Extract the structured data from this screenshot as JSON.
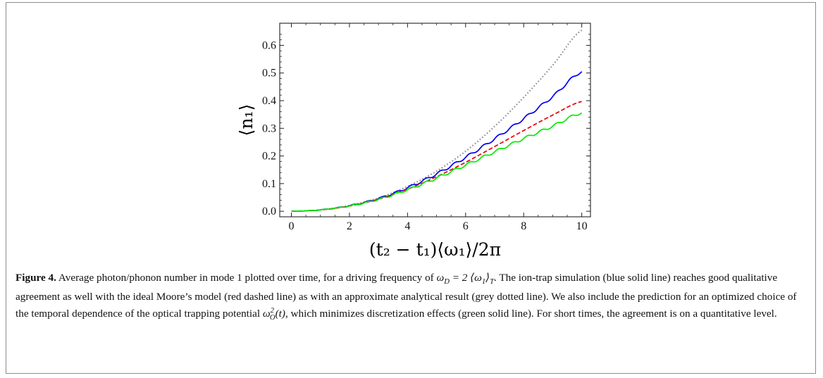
{
  "chart_data": {
    "type": "line",
    "xlabel": "(t₂ − t₁)⟨ω₁⟩/2π",
    "ylabel": "⟨n₁⟩",
    "xlim": [
      -0.4,
      10.3
    ],
    "ylim": [
      -0.02,
      0.68
    ],
    "x_ticks": [
      0,
      2,
      4,
      6,
      8,
      10
    ],
    "x_tick_labels": [
      "0",
      "2",
      "4",
      "6",
      "8",
      "10"
    ],
    "y_ticks": [
      0.0,
      0.1,
      0.2,
      0.3,
      0.4,
      0.5,
      0.6
    ],
    "y_tick_labels": [
      "0.0",
      "0.1",
      "0.2",
      "0.3",
      "0.4",
      "0.5",
      "0.6"
    ],
    "grid": false,
    "legend": "none",
    "series": [
      {
        "style": "dotted",
        "color": "#808080",
        "x": [
          0,
          1,
          2,
          3,
          4,
          5,
          6,
          7,
          8,
          9,
          10
        ],
        "y": [
          0.0,
          0.005,
          0.021,
          0.048,
          0.09,
          0.145,
          0.217,
          0.307,
          0.412,
          0.528,
          0.655
        ]
      },
      {
        "style": "solid",
        "color": "#0000ee",
        "oscillating": true,
        "x": [
          0,
          1,
          2,
          3,
          4,
          5,
          6,
          7,
          8,
          9,
          10
        ],
        "y": [
          0.0,
          0.005,
          0.02,
          0.046,
          0.085,
          0.135,
          0.195,
          0.262,
          0.335,
          0.415,
          0.505
        ]
      },
      {
        "style": "dashed",
        "color": "#e8000b",
        "x": [
          0,
          1,
          2,
          3,
          4,
          5,
          6,
          7,
          8,
          9,
          10
        ],
        "y": [
          0.0,
          0.005,
          0.019,
          0.044,
          0.08,
          0.125,
          0.177,
          0.234,
          0.292,
          0.348,
          0.397
        ]
      },
      {
        "style": "solid",
        "color": "#00ee00",
        "oscillating": true,
        "x": [
          0,
          1,
          2,
          3,
          4,
          5,
          6,
          7,
          8,
          9,
          10
        ],
        "y": [
          0.0,
          0.005,
          0.019,
          0.043,
          0.078,
          0.12,
          0.167,
          0.215,
          0.263,
          0.308,
          0.356
        ]
      }
    ]
  },
  "caption": {
    "label": "Figure 4.",
    "part1": "Average photon/phonon number in mode 1 plotted over time, for a driving frequency of",
    "math1_lhs": "ω",
    "math1_lhs_sub": "D",
    "math1_rhs": "= 2 ⟨ω",
    "math1_rhs_sub": "1",
    "math1_close": "⟩",
    "math1_close_sub": "T",
    "part2": ". The ion-trap simulation (blue solid line) reaches good qualitative agreement as well with the ideal Moore’s model (red dashed line) as with an approximate analytical result (grey dotted line). We also include the prediction for an optimized choice of the temporal dependence of the optical trapping potential",
    "math2": "ω",
    "math2_sup": "2",
    "math2_sub": "O",
    "math2_arg": "(t)",
    "part3": ", which minimizes discretization effects (green solid line). For short times, the agreement is on a quantitative level."
  }
}
